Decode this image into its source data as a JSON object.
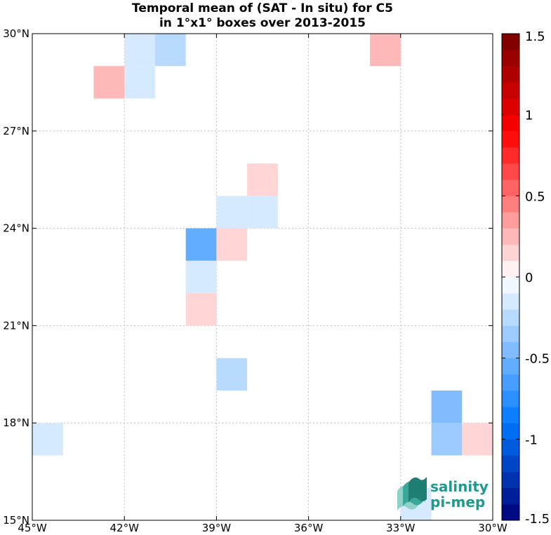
{
  "chart_data": {
    "type": "heatmap",
    "title_line1": "Temporal mean of (SAT - In situ) for C5",
    "title_line2": "in 1°x1° boxes over 2013-2015",
    "xlim": [
      -45,
      -30
    ],
    "ylim": [
      15,
      30
    ],
    "x_ticks": [
      {
        "value": -45,
        "label": "45°W"
      },
      {
        "value": -42,
        "label": "42°W"
      },
      {
        "value": -39,
        "label": "39°W"
      },
      {
        "value": -36,
        "label": "36°W"
      },
      {
        "value": -33,
        "label": "33°W"
      },
      {
        "value": -30,
        "label": "30°W"
      }
    ],
    "y_ticks": [
      {
        "value": 15,
        "label": "15°N"
      },
      {
        "value": 18,
        "label": "18°N"
      },
      {
        "value": 21,
        "label": "21°N"
      },
      {
        "value": 24,
        "label": "24°N"
      },
      {
        "value": 27,
        "label": "27°N"
      },
      {
        "value": 30,
        "label": "30°N"
      }
    ],
    "grid": "dotted",
    "colorbar": {
      "range": [
        -1.5,
        1.5
      ],
      "step": 0.1,
      "ticks": [
        {
          "value": 1.5,
          "label": "1.5"
        },
        {
          "value": 1.0,
          "label": "1"
        },
        {
          "value": 0.5,
          "label": "0.5"
        },
        {
          "value": 0.0,
          "label": "0"
        },
        {
          "value": -0.5,
          "label": "-0.5"
        },
        {
          "value": -1.0,
          "label": "-1"
        },
        {
          "value": -1.5,
          "label": "-1.5"
        }
      ],
      "colormap": "blue-white-red"
    },
    "cells": [
      {
        "lon": -43,
        "lat": 28,
        "value": 0.25
      },
      {
        "lon": -42,
        "lat": 29,
        "value": -0.15
      },
      {
        "lon": -42,
        "lat": 28,
        "value": -0.15
      },
      {
        "lon": -41,
        "lat": 29,
        "value": -0.25
      },
      {
        "lon": -34,
        "lat": 29,
        "value": 0.25
      },
      {
        "lon": -38,
        "lat": 25,
        "value": 0.15
      },
      {
        "lon": -39,
        "lat": 24,
        "value": -0.15
      },
      {
        "lon": -38,
        "lat": 24,
        "value": -0.15
      },
      {
        "lon": -40,
        "lat": 23,
        "value": -0.55
      },
      {
        "lon": -39,
        "lat": 23,
        "value": 0.15
      },
      {
        "lon": -40,
        "lat": 22,
        "value": -0.15
      },
      {
        "lon": -40,
        "lat": 21,
        "value": 0.15
      },
      {
        "lon": -39,
        "lat": 19,
        "value": -0.25
      },
      {
        "lon": -45,
        "lat": 17,
        "value": -0.15
      },
      {
        "lon": -32,
        "lat": 18,
        "value": -0.45
      },
      {
        "lon": -32,
        "lat": 17,
        "value": -0.35
      },
      {
        "lon": -31,
        "lat": 17,
        "value": 0.15
      },
      {
        "lon": -33,
        "lat": 15,
        "value": -0.15
      }
    ]
  },
  "watermark": {
    "line1": "salinity",
    "line2": "pi-mep"
  }
}
